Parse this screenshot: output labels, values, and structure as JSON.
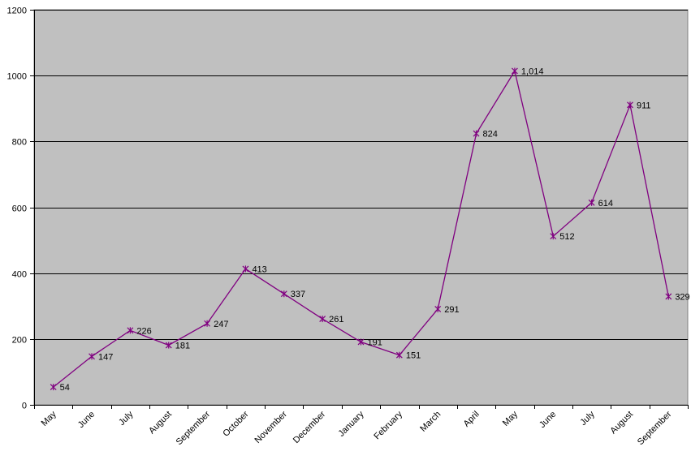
{
  "chart_data": {
    "type": "line",
    "categories": [
      "May",
      "June",
      "July",
      "August",
      "September",
      "October",
      "November",
      "December",
      "January",
      "February",
      "March",
      "April",
      "May",
      "June",
      "July",
      "August",
      "September"
    ],
    "series": [
      {
        "values": [
          54,
          147,
          226,
          181,
          247,
          413,
          337,
          261,
          191,
          151,
          291,
          824,
          1014,
          512,
          614,
          911,
          329
        ]
      }
    ],
    "data_labels": [
      "54",
      "147",
      "226",
      "181",
      "247",
      "413",
      "337",
      "261",
      "191",
      "151",
      "291",
      "824",
      "1,014",
      "512",
      "614",
      "911",
      "329"
    ],
    "y_ticks": [
      "0",
      "200",
      "400",
      "600",
      "800",
      "1000",
      "1200"
    ],
    "ylim": [
      0,
      1200
    ],
    "grid": true,
    "legend": "none",
    "colors": {
      "plot_bg": "#c0c0c0",
      "line": "#800080",
      "grid": "#000000"
    }
  }
}
